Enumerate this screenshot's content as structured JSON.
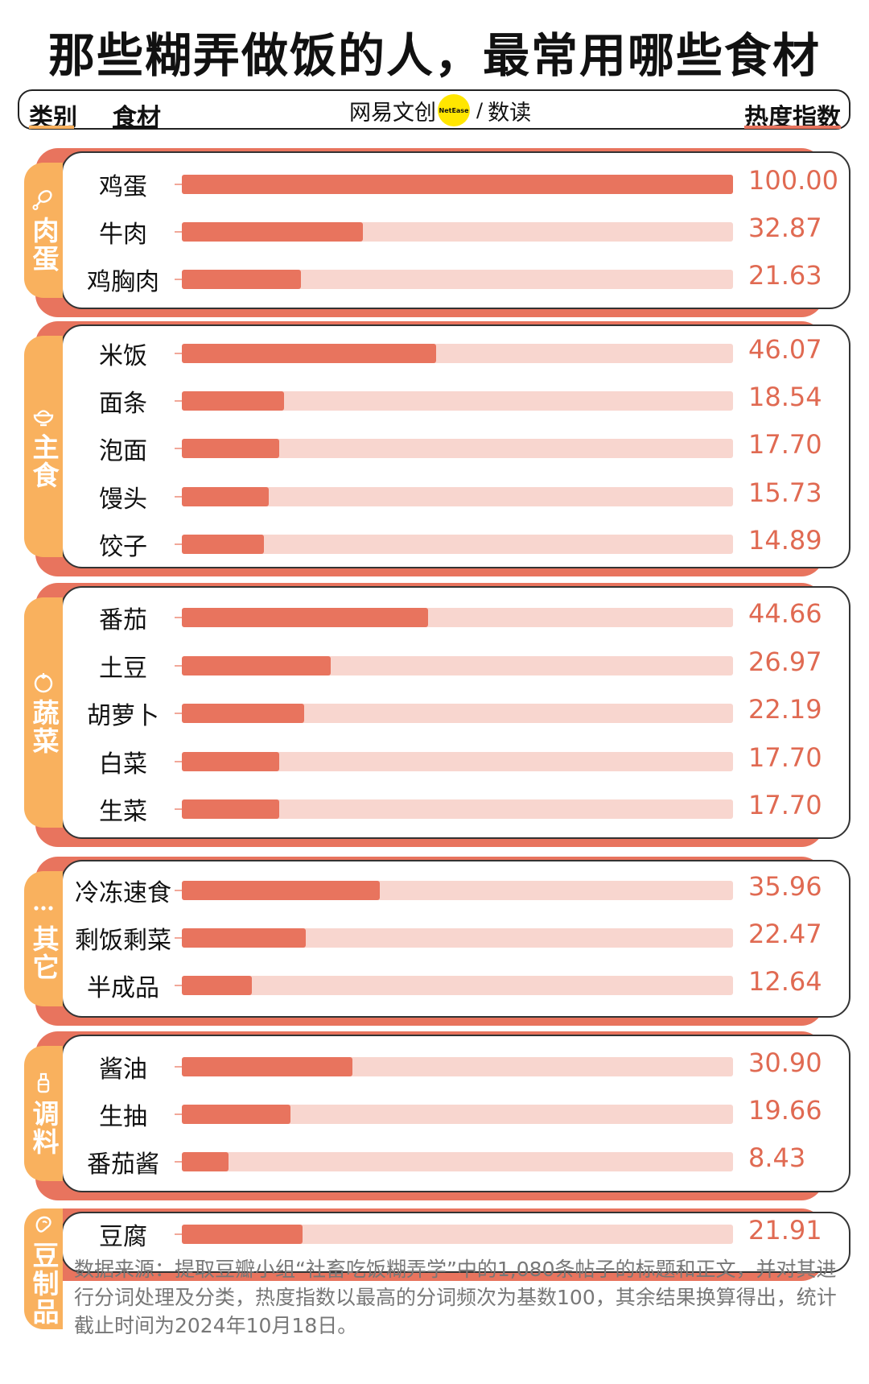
{
  "title": "那些糊弄做饭的人，最常用哪些食材",
  "header": {
    "category_label": "类别",
    "ingredient_label": "食材",
    "brand_cn": "网易文创",
    "brand_dot": "NetEase",
    "brand_slash": "/",
    "brand_sub": "数读",
    "index_label": "热度指数"
  },
  "colors": {
    "bar": "#e8745e",
    "track": "#f8d6cf",
    "tab": "#f9b15e",
    "value": "#e06a52"
  },
  "chart_data": {
    "type": "bar",
    "title": "那些糊弄做饭的人，最常用哪些食材",
    "xlabel": "热度指数",
    "ylabel": "食材",
    "xlim": [
      0,
      100
    ],
    "groups": [
      {
        "name": "肉蛋",
        "icon": "drumstick-icon",
        "items": [
          {
            "label": "鸡蛋",
            "value": 100.0,
            "display": "100.00"
          },
          {
            "label": "牛肉",
            "value": 32.87,
            "display": "32.87"
          },
          {
            "label": "鸡胸肉",
            "value": 21.63,
            "display": "21.63"
          }
        ]
      },
      {
        "name": "主食",
        "icon": "rice-bowl-icon",
        "items": [
          {
            "label": "米饭",
            "value": 46.07,
            "display": "46.07"
          },
          {
            "label": "面条",
            "value": 18.54,
            "display": "18.54"
          },
          {
            "label": "泡面",
            "value": 17.7,
            "display": "17.70"
          },
          {
            "label": "馒头",
            "value": 15.73,
            "display": "15.73"
          },
          {
            "label": "饺子",
            "value": 14.89,
            "display": "14.89"
          }
        ]
      },
      {
        "name": "蔬菜",
        "icon": "tomato-icon",
        "items": [
          {
            "label": "番茄",
            "value": 44.66,
            "display": "44.66"
          },
          {
            "label": "土豆",
            "value": 26.97,
            "display": "26.97"
          },
          {
            "label": "胡萝卜",
            "value": 22.19,
            "display": "22.19"
          },
          {
            "label": "白菜",
            "value": 17.7,
            "display": "17.70"
          },
          {
            "label": "生菜",
            "value": 17.7,
            "display": "17.70"
          }
        ]
      },
      {
        "name": "其它",
        "icon": "ellipsis-icon",
        "items": [
          {
            "label": "冷冻速食",
            "value": 35.96,
            "display": "35.96"
          },
          {
            "label": "剩饭剩菜",
            "value": 22.47,
            "display": "22.47"
          },
          {
            "label": "半成品",
            "value": 12.64,
            "display": "12.64"
          }
        ]
      },
      {
        "name": "调料",
        "icon": "sauce-bottle-icon",
        "items": [
          {
            "label": "酱油",
            "value": 30.9,
            "display": "30.90"
          },
          {
            "label": "生抽",
            "value": 19.66,
            "display": "19.66"
          },
          {
            "label": "番茄酱",
            "value": 8.43,
            "display": "8.43"
          }
        ]
      },
      {
        "name": "豆制品",
        "icon": "bean-icon",
        "items": [
          {
            "label": "豆腐",
            "value": 21.91,
            "display": "21.91"
          }
        ]
      }
    ]
  },
  "source": "数据来源：提取豆瓣小组“社畜吃饭糊弄学”中的1,080条帖子的标题和正文，并对其进行分词处理及分类，热度指数以最高的分词频次为基数100，其余结果换算得出，统计截止时间为2024年10月18日。"
}
